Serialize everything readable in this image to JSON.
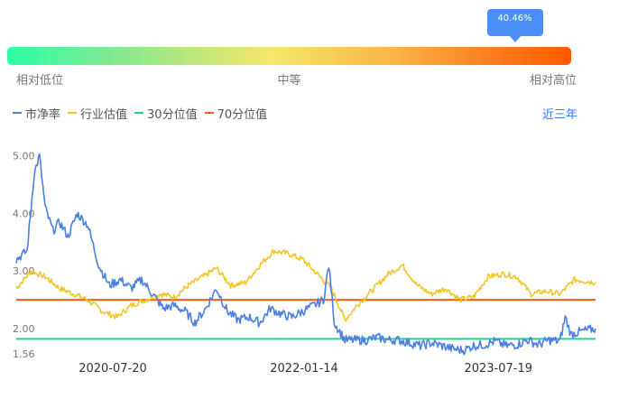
{
  "gauge": {
    "marker_label": "40.46%",
    "marker_fraction": 0.9,
    "low_label": "相对低位",
    "mid_label": "中等",
    "high_label": "相对高位"
  },
  "legend": [
    {
      "name": "市净率",
      "color": "#4a7fe6"
    },
    {
      "name": "行业估值",
      "color": "#f3c623"
    },
    {
      "name": "30分位值",
      "color": "#1fd48d"
    },
    {
      "name": "70分位值",
      "color": "#ff5a10"
    }
  ],
  "range_button": "近三年",
  "chart_data": {
    "type": "line",
    "y_ticks": [
      "5.00",
      "4.00",
      "3.00",
      "2.00",
      "1.56"
    ],
    "y_tick_values": [
      5.0,
      4.0,
      3.0,
      2.0,
      1.56
    ],
    "x_tick_labels": [
      "2020-07-20",
      "2022-01-14",
      "2023-07-19"
    ],
    "x_range": [
      "2019-10-20",
      "2024-04-20"
    ],
    "ylim": [
      1.56,
      5.2
    ],
    "series": [
      {
        "name": "市净率",
        "color": "#4a7fe6",
        "x": [
          "2019-10-20",
          "2019-11-20",
          "2019-12-10",
          "2019-12-25",
          "2020-01-10",
          "2020-02-01",
          "2020-02-20",
          "2020-03-15",
          "2020-04-10",
          "2020-05-10",
          "2020-06-10",
          "2020-07-10",
          "2020-08-10",
          "2020-09-10",
          "2020-10-10",
          "2020-11-10",
          "2020-12-10",
          "2021-01-10",
          "2021-02-10",
          "2021-03-10",
          "2021-04-10",
          "2021-05-10",
          "2021-06-10",
          "2021-07-10",
          "2021-08-10",
          "2021-09-10",
          "2021-10-10",
          "2021-11-10",
          "2021-12-10",
          "2022-01-10",
          "2022-02-10",
          "2022-03-10",
          "2022-03-25",
          "2022-04-10",
          "2022-05-10",
          "2022-06-10",
          "2022-07-10",
          "2022-08-10",
          "2022-09-10",
          "2022-10-10",
          "2022-11-10",
          "2022-12-10",
          "2023-01-10",
          "2023-02-10",
          "2023-03-10",
          "2023-04-10",
          "2023-05-10",
          "2023-06-10",
          "2023-07-10",
          "2023-08-10",
          "2023-09-10",
          "2023-10-10",
          "2023-11-10",
          "2023-12-10",
          "2024-01-10",
          "2024-01-25",
          "2024-02-10",
          "2024-03-10",
          "2024-04-20"
        ],
        "values": [
          3.2,
          3.35,
          4.7,
          5.0,
          4.1,
          3.7,
          3.85,
          3.6,
          4.0,
          3.8,
          3.1,
          2.75,
          2.85,
          2.7,
          2.85,
          2.6,
          2.35,
          2.4,
          2.3,
          2.1,
          2.35,
          2.7,
          2.3,
          2.15,
          2.2,
          2.1,
          2.35,
          2.25,
          2.2,
          2.3,
          2.4,
          2.5,
          3.1,
          2.1,
          1.8,
          1.8,
          1.8,
          1.85,
          1.8,
          1.8,
          1.75,
          1.7,
          1.75,
          1.7,
          1.65,
          1.62,
          1.7,
          1.72,
          1.78,
          1.7,
          1.72,
          1.8,
          1.72,
          1.8,
          1.78,
          2.2,
          1.9,
          1.95,
          2.0
        ]
      },
      {
        "name": "行业估值",
        "color": "#f3c623",
        "x": [
          "2019-10-20",
          "2019-12-01",
          "2020-01-10",
          "2020-02-20",
          "2020-04-01",
          "2020-05-10",
          "2020-06-20",
          "2020-08-01",
          "2020-09-10",
          "2020-10-20",
          "2020-12-01",
          "2021-01-10",
          "2021-02-20",
          "2021-04-01",
          "2021-05-10",
          "2021-06-20",
          "2021-08-01",
          "2021-09-10",
          "2021-10-20",
          "2021-12-01",
          "2022-01-10",
          "2022-02-20",
          "2022-04-01",
          "2022-05-10",
          "2022-06-20",
          "2022-08-01",
          "2022-09-10",
          "2022-10-20",
          "2022-12-01",
          "2023-01-10",
          "2023-02-20",
          "2023-04-01",
          "2023-05-10",
          "2023-06-20",
          "2023-08-01",
          "2023-09-10",
          "2023-10-20",
          "2023-12-01",
          "2024-01-10",
          "2024-02-20",
          "2024-04-20"
        ],
        "values": [
          2.7,
          3.0,
          2.9,
          2.7,
          2.6,
          2.5,
          2.3,
          2.2,
          2.4,
          2.5,
          2.6,
          2.55,
          2.75,
          2.9,
          3.05,
          2.75,
          2.8,
          3.1,
          3.35,
          3.3,
          3.2,
          2.95,
          2.7,
          2.15,
          2.45,
          2.7,
          2.95,
          3.1,
          2.75,
          2.6,
          2.7,
          2.5,
          2.55,
          2.9,
          2.95,
          2.9,
          2.6,
          2.65,
          2.6,
          2.85,
          2.8
        ]
      },
      {
        "name": "30分位值",
        "color": "#1fd48d",
        "x": [
          "2019-10-20",
          "2024-04-20"
        ],
        "values": [
          1.82,
          1.82
        ]
      },
      {
        "name": "70分位值",
        "color": "#ff5a10",
        "x": [
          "2019-10-20",
          "2024-04-20"
        ],
        "values": [
          2.5,
          2.5
        ]
      }
    ]
  }
}
